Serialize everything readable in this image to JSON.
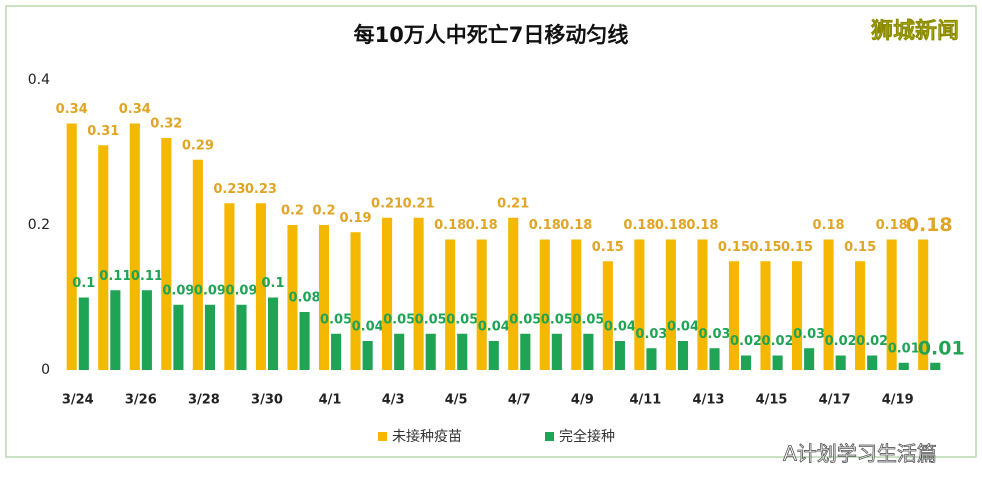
{
  "chart_data": {
    "type": "bar",
    "title": "每10万人中死亡7日移动匀线",
    "watermark": "狮城新闻",
    "footer": "A计划学习生活篇",
    "categories": [
      "3/24",
      null,
      "3/26",
      null,
      "3/28",
      null,
      "3/30",
      null,
      "4/1",
      null,
      "4/3",
      null,
      "4/5",
      null,
      "4/7",
      null,
      "4/9",
      null,
      "4/11",
      null,
      "4/13",
      null,
      "4/15",
      null,
      "4/17",
      null,
      "4/19",
      null
    ],
    "series": [
      {
        "name": "未接种疫苗",
        "color": "#f5b800",
        "label_color": "#e0a526",
        "values": [
          0.34,
          0.31,
          0.34,
          0.32,
          0.29,
          0.23,
          0.23,
          0.2,
          0.2,
          0.19,
          0.21,
          0.21,
          0.18,
          0.18,
          0.21,
          0.18,
          0.18,
          0.15,
          0.18,
          0.18,
          0.18,
          0.15,
          0.15,
          0.15,
          0.18,
          0.15,
          0.18,
          0.18
        ]
      },
      {
        "name": "完全接种",
        "color": "#1fa355",
        "label_color": "#1fa355",
        "values": [
          0.1,
          0.11,
          0.11,
          0.09,
          0.09,
          0.09,
          0.1,
          0.08,
          0.05,
          0.04,
          0.05,
          0.05,
          0.05,
          0.04,
          0.05,
          0.05,
          0.05,
          0.04,
          0.03,
          0.04,
          0.03,
          0.02,
          0.02,
          0.03,
          0.02,
          0.02,
          0.01,
          0.01
        ]
      }
    ],
    "ylim": [
      0,
      0.4
    ],
    "yticks": [
      0,
      0.2,
      0.4
    ],
    "grid": false
  }
}
